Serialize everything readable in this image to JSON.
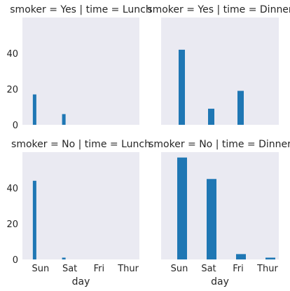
{
  "chart_data": {
    "type": "bar",
    "layout": "facet-grid",
    "row_var": "smoker",
    "col_var": "time",
    "categories": [
      "Sun",
      "Sat",
      "Fri",
      "Thur"
    ],
    "xlabel": "day",
    "ylim": [
      0,
      60
    ],
    "yticks": [
      0,
      20,
      40
    ],
    "grid": false,
    "bar_color": "#1f77b4",
    "panel_background": "#eaeaf2",
    "panels": [
      {
        "title": "smoker = Yes | time = Lunch",
        "values": [
          17,
          6,
          0,
          0
        ],
        "bar_style": "narrow"
      },
      {
        "title": "smoker = Yes | time = Dinner",
        "values": [
          42,
          9,
          19,
          0
        ],
        "bar_style": "offset"
      },
      {
        "title": "smoker = No | time = Lunch",
        "values": [
          44,
          1,
          0,
          0
        ],
        "bar_style": "narrow"
      },
      {
        "title": "smoker = No | time = Dinner",
        "values": [
          57,
          45,
          3,
          1
        ],
        "bar_style": "wide"
      }
    ]
  }
}
